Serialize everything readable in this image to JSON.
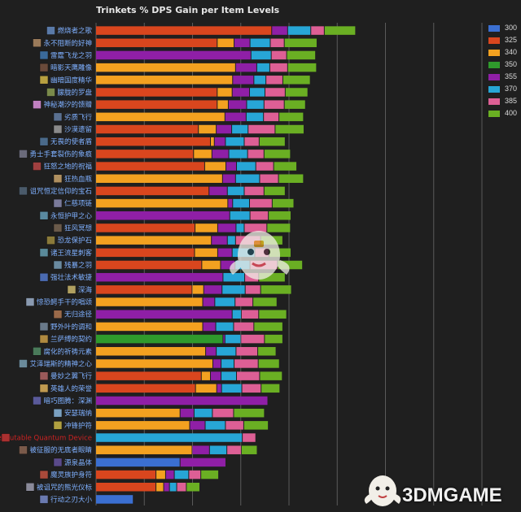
{
  "chart_data": {
    "type": "bar",
    "stacked": true,
    "orientation": "horizontal",
    "title": "Trinkets % DPS Gain per Item Levels",
    "xlim": [
      0,
      8
    ],
    "grid": true,
    "legend_position": "right",
    "series_names": [
      "300",
      "325",
      "340",
      "350",
      "355",
      "370",
      "385",
      "400"
    ],
    "series_colors": [
      "#3b6fd1",
      "#d9461e",
      "#f3a120",
      "#2f9a2c",
      "#8f1fa6",
      "#27a6d6",
      "#dd5f95",
      "#6aaf23"
    ],
    "categories": [
      "燃烧者之歌",
      "永不阻断的好神",
      "雷霆飞龙之羽",
      "暗影天鹰雕像",
      "幽暗国度精华",
      "朦胧的罗盘",
      "神秘潮汐的馈赠",
      "劣质飞行",
      "沙漠遗留",
      "无畏的使者盾",
      "勇士手套裂伤的象痕",
      "狂怒之地的祝福",
      "狂热血瓶",
      "诅咒恒定信仰的宝石",
      "仁慈项链",
      "永恒护甲之心",
      "狂风冥想",
      "恐龙保护石",
      "诸王流星刺客",
      "残暴之羽",
      "强壮法术敏捷",
      "深海",
      "惊恐鳄手干的唱颂",
      "无归途径",
      "野外叶的调和",
      "兰萨缚的契约",
      "腐化的祈祷元素",
      "艾泽瑞斯的精神之心",
      "曼妙之翼飞行",
      "英雄人的荣誉",
      "暗巧图腾：深渊",
      "安瑟瑞纳",
      "冲锋护符",
      "Inscrutable Quantum Device",
      "被征服的无底者眼睛",
      "源泉晶体",
      "魔灵族护身符",
      "被诅咒的熊光仪标",
      "行动之刃大小"
    ],
    "label_colors": [
      "#7fb0ff",
      "#7fb0ff",
      "#7fb0ff",
      "#7fb0ff",
      "#7fb0ff",
      "#7fb0ff",
      "#7fb0ff",
      "#7fb0ff",
      "#7fb0ff",
      "#7fb0ff",
      "#7fb0ff",
      "#7fb0ff",
      "#7fb0ff",
      "#7fb0ff",
      "#7fb0ff",
      "#7fb0ff",
      "#7fb0ff",
      "#7fb0ff",
      "#7fb0ff",
      "#7fb0ff",
      "#7fb0ff",
      "#7fb0ff",
      "#7fb0ff",
      "#7fb0ff",
      "#7fb0ff",
      "#7fb0ff",
      "#7fb0ff",
      "#7fb0ff",
      "#7fb0ff",
      "#7fb0ff",
      "#7fb0ff",
      "#7fb0ff",
      "#7fb0ff",
      "#cc2222",
      "#7fb0ff",
      "#7fb0ff",
      "#7fb0ff",
      "#7fb0ff",
      "#7fb0ff"
    ],
    "icon_colors": [
      "#5a7aa8",
      "#9a7a5a",
      "#3a6a9a",
      "#6a4a3a",
      "#b8a040",
      "#7a8a4a",
      "#c080c0",
      "#5a7090",
      "#8a8a8a",
      "#4a6a8a",
      "#6a6a7a",
      "#a04040",
      "#b09060",
      "#4a5a6a",
      "#7a7a9a",
      "#5a8aa0",
      "#6a5a4a",
      "#8a7a3a",
      "#5a8a9a",
      "#6a8aa0",
      "#4a6ab0",
      "#b0a060",
      "#8a9ab0",
      "#9a6a4a",
      "#6a7a8a",
      "#b08a40",
      "#4a7a5a",
      "#6a8a9a",
      "#9a5a5a",
      "#c09a50",
      "#5a5a9a",
      "#7aa0c0",
      "#b0a040",
      "#aa3030",
      "#7a5a4a",
      "#5a4a8a",
      "#aa4a3a",
      "#8a8a9a",
      "#6a7ab0"
    ],
    "bars": [
      [
        [
          325,
          3.65
        ],
        [
          340,
          0
        ],
        [
          355,
          0.33
        ],
        [
          370,
          0.48
        ],
        [
          385,
          0.28
        ],
        [
          400,
          0.65
        ]
      ],
      [
        [
          325,
          2.52
        ],
        [
          340,
          0.35
        ],
        [
          355,
          0.33
        ],
        [
          370,
          0.42
        ],
        [
          385,
          0.29
        ],
        [
          400,
          0.68
        ]
      ],
      [
        [
          355,
          3.22
        ],
        [
          370,
          0.42
        ],
        [
          385,
          0.32
        ],
        [
          400,
          0.6
        ]
      ],
      [
        [
          340,
          2.9
        ],
        [
          355,
          0.44
        ],
        [
          370,
          0.27
        ],
        [
          385,
          0.37
        ],
        [
          400,
          0.6
        ]
      ],
      [
        [
          340,
          2.84
        ],
        [
          355,
          0.44
        ],
        [
          370,
          0.25
        ],
        [
          385,
          0.35
        ],
        [
          400,
          0.57
        ]
      ],
      [
        [
          325,
          2.52
        ],
        [
          340,
          0.31
        ],
        [
          355,
          0.36
        ],
        [
          370,
          0.32
        ],
        [
          385,
          0.42
        ],
        [
          400,
          0.47
        ]
      ],
      [
        [
          325,
          2.52
        ],
        [
          340,
          0.23
        ],
        [
          355,
          0.38
        ],
        [
          370,
          0.36
        ],
        [
          385,
          0.42
        ],
        [
          400,
          0.44
        ]
      ],
      [
        [
          340,
          2.68
        ],
        [
          355,
          0.44
        ],
        [
          370,
          0.36
        ],
        [
          385,
          0.32
        ],
        [
          400,
          0.51
        ]
      ],
      [
        [
          325,
          2.13
        ],
        [
          340,
          0.37
        ],
        [
          355,
          0.32
        ],
        [
          370,
          0.34
        ],
        [
          385,
          0.56
        ],
        [
          400,
          0.6
        ]
      ],
      [
        [
          325,
          2.38
        ],
        [
          340,
          0.08
        ],
        [
          355,
          0.23
        ],
        [
          370,
          0.39
        ],
        [
          385,
          0.31
        ],
        [
          400,
          0.54
        ]
      ],
      [
        [
          325,
          2.03
        ],
        [
          340,
          0.38
        ],
        [
          355,
          0.35
        ],
        [
          370,
          0.39
        ],
        [
          385,
          0.34
        ],
        [
          400,
          0.55
        ]
      ],
      [
        [
          325,
          2.26
        ],
        [
          340,
          0.44
        ],
        [
          355,
          0.22
        ],
        [
          370,
          0.4
        ],
        [
          385,
          0.37
        ],
        [
          400,
          0.48
        ]
      ],
      [
        [
          340,
          2.63
        ],
        [
          355,
          0.27
        ],
        [
          370,
          0.5
        ],
        [
          385,
          0.39
        ],
        [
          400,
          0.52
        ]
      ],
      [
        [
          325,
          2.35
        ],
        [
          355,
          0.38
        ],
        [
          370,
          0.35
        ],
        [
          385,
          0.41
        ],
        [
          400,
          0.44
        ]
      ],
      [
        [
          340,
          2.74
        ],
        [
          355,
          0.1
        ],
        [
          370,
          0.35
        ],
        [
          385,
          0.47
        ],
        [
          400,
          0.45
        ]
      ],
      [
        [
          355,
          2.78
        ],
        [
          370,
          0.42
        ],
        [
          385,
          0.38
        ],
        [
          400,
          0.47
        ]
      ],
      [
        [
          325,
          2.06
        ],
        [
          340,
          0.47
        ],
        [
          355,
          0.38
        ],
        [
          370,
          0.17
        ],
        [
          385,
          0.47
        ],
        [
          400,
          0.49
        ]
      ],
      [
        [
          340,
          2.4
        ],
        [
          355,
          0.33
        ],
        [
          370,
          0.17
        ],
        [
          385,
          0.52
        ],
        [
          400,
          0.46
        ]
      ],
      [
        [
          325,
          2.05
        ],
        [
          340,
          0.48
        ],
        [
          355,
          0.3
        ],
        [
          370,
          0.47
        ],
        [
          385,
          0.29
        ],
        [
          400,
          0.46
        ]
      ],
      [
        [
          325,
          2.2
        ],
        [
          340,
          0.39
        ],
        [
          355,
          0.3
        ],
        [
          370,
          0.31
        ],
        [
          385,
          0.57
        ],
        [
          400,
          0.52
        ]
      ],
      [
        [
          355,
          2.64
        ],
        [
          370,
          0.45
        ],
        [
          385,
          0.29
        ],
        [
          400,
          0.55
        ]
      ],
      [
        [
          325,
          2.0
        ],
        [
          340,
          0.24
        ],
        [
          355,
          0.38
        ],
        [
          370,
          0.48
        ],
        [
          385,
          0.32
        ],
        [
          400,
          0.64
        ]
      ],
      [
        [
          340,
          2.22
        ],
        [
          355,
          0.25
        ],
        [
          370,
          0.42
        ],
        [
          385,
          0.37
        ],
        [
          400,
          0.5
        ]
      ],
      [
        [
          355,
          2.83
        ],
        [
          370,
          0.19
        ],
        [
          385,
          0.36
        ],
        [
          400,
          0.58
        ]
      ],
      [
        [
          340,
          2.22
        ],
        [
          355,
          0.27
        ],
        [
          370,
          0.37
        ],
        [
          385,
          0.42
        ],
        [
          400,
          0.6
        ]
      ],
      [
        [
          350,
          2.64
        ],
        [
          355,
          0.04
        ],
        [
          370,
          0.33
        ],
        [
          385,
          0.49
        ],
        [
          400,
          0.38
        ]
      ],
      [
        [
          340,
          2.28
        ],
        [
          355,
          0.22
        ],
        [
          370,
          0.41
        ],
        [
          385,
          0.45
        ],
        [
          400,
          0.38
        ]
      ],
      [
        [
          340,
          2.43
        ],
        [
          355,
          0.17
        ],
        [
          370,
          0.27
        ],
        [
          385,
          0.5
        ],
        [
          400,
          0.44
        ]
      ],
      [
        [
          325,
          2.19
        ],
        [
          340,
          0.19
        ],
        [
          355,
          0.22
        ],
        [
          370,
          0.32
        ],
        [
          385,
          0.48
        ],
        [
          400,
          0.47
        ]
      ],
      [
        [
          325,
          2.07
        ],
        [
          340,
          0.44
        ],
        [
          355,
          0.1
        ],
        [
          370,
          0.42
        ],
        [
          385,
          0.4
        ],
        [
          400,
          0.39
        ]
      ],
      [
        [
          355,
          3.57
        ]
      ],
      [
        [
          340,
          1.75
        ],
        [
          355,
          0.29
        ],
        [
          370,
          0.38
        ],
        [
          385,
          0.44
        ],
        [
          400,
          0.64
        ]
      ],
      [
        [
          340,
          1.95
        ],
        [
          355,
          0.32
        ],
        [
          370,
          0.42
        ],
        [
          385,
          0.38
        ],
        [
          400,
          0.51
        ]
      ],
      [
        [
          370,
          3.04
        ],
        [
          385,
          0.28
        ]
      ],
      [
        [
          340,
          2.0
        ],
        [
          355,
          0.36
        ],
        [
          370,
          0.36
        ],
        [
          385,
          0.3
        ],
        [
          400,
          0.33
        ]
      ],
      [
        [
          300,
          1.75
        ],
        [
          355,
          0.95
        ]
      ],
      [
        [
          325,
          1.25
        ],
        [
          340,
          0.2
        ],
        [
          355,
          0.18
        ],
        [
          370,
          0.3
        ],
        [
          385,
          0.25
        ],
        [
          400,
          0.37
        ]
      ],
      [
        [
          325,
          1.25
        ],
        [
          340,
          0.16
        ],
        [
          355,
          0.12
        ],
        [
          370,
          0.15
        ],
        [
          385,
          0.2
        ],
        [
          400,
          0.28
        ]
      ],
      [
        [
          300,
          0.78
        ]
      ]
    ]
  },
  "watermark": {
    "brand": "3DMGAME"
  }
}
